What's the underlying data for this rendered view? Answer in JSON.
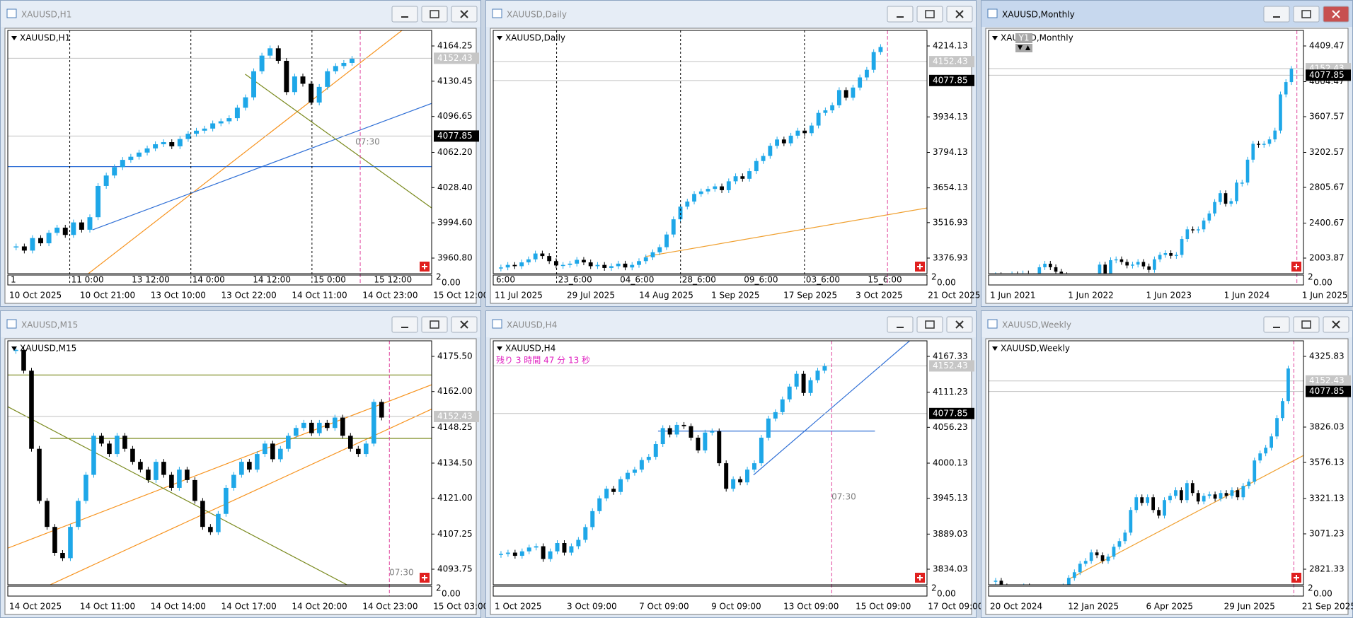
{
  "windows": [
    {
      "title": "XAUUSD,H1",
      "symbol_label": "XAUUSD,H1",
      "price_ticks": [
        4164.25,
        4130.45,
        4096.65,
        {
          "value": 4062.2,
          "label": "4062.20"
        },
        {
          "value": 4028.4,
          "label": "4028.40"
        },
        {
          "value": 3994.6,
          "label": "3994.60"
        },
        {
          "value": 3960.8,
          "label": "3960.80"
        }
      ],
      "price_tags": [
        4152.43,
        4077.85
      ],
      "time_labels": [
        "10 Oct 2025",
        "10 Oct 21:00",
        "13 Oct 10:00",
        "13 Oct 22:00",
        "14 Oct 11:00",
        "14 Oct 23:00",
        "15 Oct 12:00"
      ],
      "separator_labels": [
        "1",
        "11 0:00",
        "13 12:00",
        "14 0:00",
        "14 12:00",
        "15 0:00",
        "15 12:00"
      ],
      "sub_scale": [
        "2",
        "0.00"
      ],
      "annotation": "07:30",
      "closes": [
        3972,
        3968,
        3980,
        3975,
        3985,
        3990,
        3983,
        3995,
        3988,
        4000,
        4030,
        4040,
        4048,
        4055,
        4058,
        4062,
        4066,
        4070,
        4072,
        4068,
        4075,
        4080,
        4083,
        4085,
        4090,
        4092,
        4095,
        4105,
        4115,
        4140,
        4155,
        4162,
        4150,
        4120,
        4135,
        4128,
        4110,
        4125,
        4140,
        4145,
        4148,
        4152
      ]
    },
    {
      "title": "XAUUSD,Daily",
      "symbol_label": "XAUUSD,Daily",
      "price_ticks": [
        4214.13,
        3934.13,
        3794.13,
        3654.13,
        3516.93,
        3376.93
      ],
      "price_tags": [
        4152.43,
        4077.85
      ],
      "time_labels": [
        "11 Jul 2025",
        "29 Jul 2025",
        "14 Aug 2025",
        "1 Sep 2025",
        "17 Sep 2025",
        "3 Oct 2025",
        "21 Oct 2025"
      ],
      "separator_labels": [
        "6:00",
        "23_6:00",
        "04_6:00",
        "28_6:00",
        "09_6:00",
        "03_6:00",
        "15_6:00"
      ],
      "sub_scale": [
        "2",
        "0.00"
      ],
      "closes": [
        3340,
        3350,
        3345,
        3360,
        3372,
        3395,
        3385,
        3365,
        3348,
        3350,
        3355,
        3370,
        3360,
        3345,
        3350,
        3338,
        3345,
        3355,
        3340,
        3350,
        3365,
        3380,
        3400,
        3420,
        3470,
        3530,
        3580,
        3600,
        3630,
        3640,
        3650,
        3660,
        3645,
        3680,
        3700,
        3690,
        3720,
        3760,
        3780,
        3820,
        3845,
        3830,
        3860,
        3880,
        3870,
        3900,
        3950,
        3960,
        3980,
        4040,
        4010,
        4050,
        4090,
        4120,
        4190,
        4210
      ]
    },
    {
      "title": "XAUUSD,Monthly",
      "symbol_label": "XAUUSD,Monthly",
      "price_ticks": [
        4409.47,
        4004.47,
        3607.57,
        3202.57,
        2805.67,
        2400.67,
        2003.87
      ],
      "price_tags": [
        4152.43,
        4077.85
      ],
      "time_labels": [
        "1 Jun 2021",
        "1 Jun 2022",
        "1 Jun 2023",
        "1 Jun 2024",
        "1 Jun 2025"
      ],
      "sub_scale": [
        "2",
        "0.00"
      ],
      "period_marker": "Y1",
      "closes": [
        1810,
        1780,
        1790,
        1820,
        1800,
        1830,
        1800,
        1790,
        1900,
        1940,
        1900,
        1850,
        1810,
        1780,
        1720,
        1660,
        1640,
        1760,
        1800,
        1930,
        1830,
        1980,
        1990,
        1960,
        1920,
        1930,
        1960,
        1910,
        1870,
        1990,
        2040,
        2060,
        2030,
        2040,
        2220,
        2330,
        2320,
        2330,
        2430,
        2510,
        2640,
        2740,
        2620,
        2650,
        2860,
        2860,
        3120,
        3300,
        3290,
        3300,
        3350,
        3450,
        3860,
        4000,
        4150
      ]
    },
    {
      "title": "XAUUSD,M15",
      "symbol_label": "XAUUSD,M15",
      "price_ticks": [
        {
          "value": 4175.5,
          "label": "4175.50"
        },
        {
          "value": 4162,
          "label": "4162.00"
        },
        4148.25,
        {
          "value": 4134.5,
          "label": "4134.50"
        },
        {
          "value": 4121,
          "label": "4121.00"
        },
        4107.25,
        4093.75
      ],
      "price_tags": [
        4152.43
      ],
      "time_labels": [
        "14 Oct 2025",
        "14 Oct 11:00",
        "14 Oct 14:00",
        "14 Oct 17:00",
        "14 Oct 20:00",
        "14 Oct 23:00",
        "15 Oct 03:00"
      ],
      "sub_scale": [
        "2",
        "0.00"
      ],
      "annotation": "07:30",
      "closes": [
        4178,
        4170,
        4140,
        4120,
        4110,
        4100,
        4098,
        4110,
        4120,
        4130,
        4145,
        4142,
        4138,
        4145,
        4140,
        4135,
        4132,
        4128,
        4135,
        4130,
        4125,
        4132,
        4128,
        4120,
        4110,
        4108,
        4115,
        4125,
        4130,
        4135,
        4132,
        4138,
        4142,
        4136,
        4140,
        4145,
        4148,
        4150,
        4146,
        4150,
        4148,
        4152,
        4145,
        4140,
        4138,
        4142,
        4158,
        4152
      ]
    },
    {
      "title": "XAUUSD,H4",
      "symbol_label": "XAUUSD,H4",
      "price_ticks": [
        4167.33,
        4111.23,
        4056.23,
        4000.13,
        3945.13,
        3889.03,
        3834.03
      ],
      "price_tags": [
        4152.43,
        4077.85
      ],
      "time_labels": [
        "1 Oct 2025",
        "3 Oct 09:00",
        "7 Oct 09:00",
        "9 Oct 09:00",
        "13 Oct 09:00",
        "15 Oct 09:00",
        "17 Oct 09:00"
      ],
      "sub_scale": [
        "2",
        "0.00"
      ],
      "annotation": "07:30",
      "countdown": "残り 3 時間 47 分 13 秒",
      "closes": [
        3858,
        3860,
        3855,
        3862,
        3868,
        3870,
        3850,
        3862,
        3875,
        3860,
        3870,
        3880,
        3900,
        3925,
        3945,
        3960,
        3955,
        3975,
        3985,
        3990,
        4005,
        4010,
        4030,
        4055,
        4045,
        4060,
        4058,
        4040,
        4020,
        4048,
        4050,
        4000,
        3960,
        3975,
        3970,
        3990,
        4000,
        4040,
        4070,
        4080,
        4100,
        4120,
        4140,
        4110,
        4130,
        4145,
        4152
      ]
    },
    {
      "title": "XAUUSD,Weekly",
      "symbol_label": "XAUUSD,Weekly",
      "price_ticks": [
        4325.83,
        3826.03,
        3576.13,
        3321.13,
        3071.23,
        2821.33
      ],
      "price_tags": [
        4152.43,
        4077.85
      ],
      "time_labels": [
        "20 Oct 2024",
        "12 Jan 2025",
        "6 Apr 2025",
        "29 Jun 2025",
        "21 Sep 2025"
      ],
      "sub_scale": [
        "2",
        "0.00"
      ],
      "closes": [
        2740,
        2700,
        2620,
        2560,
        2650,
        2700,
        2640,
        2620,
        2690,
        2650,
        2610,
        2640,
        2700,
        2760,
        2800,
        2860,
        2880,
        2940,
        2920,
        2880,
        2910,
        2980,
        3020,
        3080,
        3240,
        3330,
        3290,
        3330,
        3240,
        3200,
        3310,
        3340,
        3380,
        3310,
        3430,
        3360,
        3300,
        3340,
        3350,
        3320,
        3360,
        3340,
        3380,
        3330,
        3410,
        3440,
        3590,
        3640,
        3680,
        3760,
        3890,
        4010,
        4240
      ]
    }
  ]
}
